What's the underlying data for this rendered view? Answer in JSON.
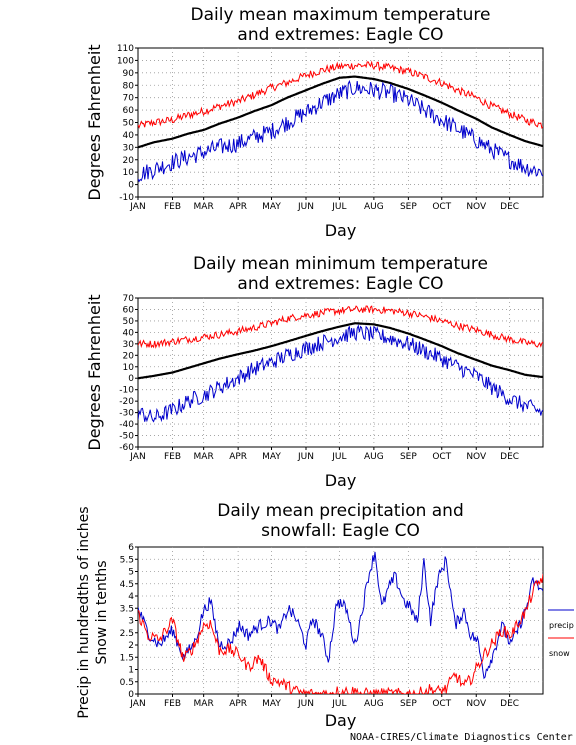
{
  "credit": "NOAA-CIRES/Climate Diagnostics Center",
  "chart_data": [
    {
      "type": "line",
      "title": "Daily mean maximum temperature\nand extremes: Eagle CO",
      "xlabel": "Day",
      "ylabel": "Degrees Fahrenheit",
      "ylim": [
        -10,
        110
      ],
      "yticks": [
        -10,
        0,
        10,
        20,
        30,
        40,
        50,
        60,
        70,
        80,
        90,
        100,
        110
      ],
      "xtick_labels": [
        "JAN",
        "FEB",
        "MAR",
        "APR",
        "MAY",
        "JUN",
        "JUL",
        "AUG",
        "SEP",
        "OCT",
        "NOV",
        "DEC"
      ],
      "grid": true,
      "x_unit": "day of year (1-365)",
      "series": [
        {
          "color": "#ff0000",
          "style": "thin",
          "x": [
            1,
            15,
            32,
            46,
            60,
            74,
            91,
            105,
            121,
            135,
            152,
            166,
            182,
            196,
            213,
            227,
            244,
            258,
            274,
            288,
            305,
            319,
            335,
            349,
            365
          ],
          "values": [
            47,
            50,
            52,
            56,
            59,
            63,
            67,
            72,
            78,
            82,
            88,
            92,
            95,
            96,
            96,
            94,
            91,
            87,
            82,
            76,
            70,
            63,
            57,
            52,
            48
          ]
        },
        {
          "color": "#000000",
          "style": "thick",
          "x": [
            1,
            15,
            32,
            46,
            60,
            74,
            91,
            105,
            121,
            135,
            152,
            166,
            182,
            196,
            213,
            227,
            244,
            258,
            274,
            288,
            305,
            319,
            335,
            349,
            365
          ],
          "values": [
            30,
            34,
            37,
            41,
            44,
            49,
            54,
            59,
            64,
            70,
            76,
            81,
            86,
            87,
            85,
            82,
            77,
            72,
            66,
            60,
            53,
            46,
            40,
            35,
            31
          ]
        },
        {
          "color": "#0000cc",
          "style": "thin",
          "x": [
            1,
            15,
            32,
            46,
            60,
            74,
            91,
            105,
            121,
            135,
            152,
            166,
            182,
            196,
            213,
            227,
            244,
            258,
            274,
            288,
            305,
            319,
            335,
            349,
            365
          ],
          "values": [
            8,
            12,
            18,
            22,
            26,
            30,
            33,
            38,
            43,
            50,
            58,
            66,
            73,
            78,
            76,
            74,
            68,
            60,
            52,
            45,
            36,
            28,
            20,
            14,
            10
          ]
        }
      ]
    },
    {
      "type": "line",
      "title": "Daily mean minimum temperature\nand extremes: Eagle CO",
      "xlabel": "Day",
      "ylabel": "Degrees Fahrenheit",
      "ylim": [
        -60,
        70
      ],
      "yticks": [
        -60,
        -50,
        -40,
        -30,
        -20,
        -10,
        0,
        10,
        20,
        30,
        40,
        50,
        60,
        70
      ],
      "xtick_labels": [
        "JAN",
        "FEB",
        "MAR",
        "APR",
        "MAY",
        "JUN",
        "JUL",
        "AUG",
        "SEP",
        "OCT",
        "NOV",
        "DEC"
      ],
      "grid": true,
      "x_unit": "day of year (1-365)",
      "series": [
        {
          "color": "#ff0000",
          "style": "thin",
          "x": [
            1,
            15,
            32,
            46,
            60,
            74,
            91,
            105,
            121,
            135,
            152,
            166,
            182,
            196,
            213,
            227,
            244,
            258,
            274,
            288,
            305,
            319,
            335,
            349,
            365
          ],
          "values": [
            30,
            30,
            32,
            34,
            36,
            38,
            41,
            44,
            48,
            52,
            55,
            57,
            59,
            60,
            60,
            59,
            57,
            54,
            50,
            46,
            42,
            38,
            34,
            31,
            29
          ]
        },
        {
          "color": "#000000",
          "style": "thick",
          "x": [
            1,
            15,
            32,
            46,
            60,
            74,
            91,
            105,
            121,
            135,
            152,
            166,
            182,
            196,
            213,
            227,
            244,
            258,
            274,
            288,
            305,
            319,
            335,
            349,
            365
          ],
          "values": [
            0,
            2,
            5,
            9,
            13,
            17,
            21,
            24,
            28,
            32,
            37,
            41,
            45,
            48,
            47,
            44,
            39,
            34,
            28,
            22,
            16,
            11,
            7,
            3,
            1
          ]
        },
        {
          "color": "#0000cc",
          "style": "thin",
          "x": [
            1,
            15,
            32,
            46,
            60,
            74,
            91,
            105,
            121,
            135,
            152,
            166,
            182,
            196,
            213,
            227,
            244,
            258,
            274,
            288,
            305,
            319,
            335,
            349,
            365
          ],
          "values": [
            -30,
            -35,
            -28,
            -20,
            -15,
            -8,
            0,
            8,
            14,
            20,
            26,
            31,
            36,
            40,
            38,
            35,
            30,
            24,
            17,
            10,
            2,
            -8,
            -18,
            -24,
            -30
          ]
        }
      ]
    },
    {
      "type": "line",
      "title": "Daily mean precipitation and\nsnowfall: Eagle CO",
      "xlabel": "Day",
      "ylabel_lines": [
        "Precip in hundredths of inches",
        "Snow in tenths"
      ],
      "ylim": [
        0,
        6
      ],
      "yticks": [
        0,
        0.5,
        1,
        1.5,
        2,
        2.5,
        3,
        3.5,
        4,
        4.5,
        5,
        5.5,
        6
      ],
      "ytick_labels": [
        "0",
        "0.5",
        "1",
        "1.5",
        "2",
        "2.5",
        "3",
        "3.5",
        "4",
        "4.5",
        "5",
        "5.5",
        "6"
      ],
      "xtick_labels": [
        "JAN",
        "FEB",
        "MAR",
        "APR",
        "MAY",
        "JUN",
        "JUL",
        "AUG",
        "SEP",
        "OCT",
        "NOV",
        "DEC"
      ],
      "grid": true,
      "x_unit": "day of year (1-365)",
      "legend_placement": "right",
      "series": [
        {
          "name": "precip",
          "color": "#0000cc",
          "x": [
            1,
            10,
            20,
            32,
            42,
            52,
            60,
            66,
            74,
            84,
            92,
            100,
            110,
            120,
            128,
            136,
            144,
            152,
            158,
            166,
            172,
            180,
            188,
            196,
            202,
            208,
            214,
            220,
            226,
            232,
            240,
            246,
            252,
            258,
            264,
            270,
            278,
            286,
            294,
            300,
            306,
            312,
            320,
            328,
            336,
            344,
            350,
            356,
            365
          ],
          "values": [
            3.5,
            2.5,
            2.0,
            2.6,
            1.5,
            2.1,
            3.4,
            3.8,
            2.0,
            2.1,
            2.8,
            2.4,
            2.8,
            3.0,
            2.6,
            3.5,
            3.0,
            2.0,
            3.1,
            2.4,
            1.4,
            3.8,
            3.5,
            2.0,
            3.3,
            4.8,
            5.8,
            3.5,
            4.3,
            4.8,
            3.8,
            3.5,
            2.9,
            5.4,
            3.0,
            4.6,
            5.5,
            2.8,
            3.4,
            2.4,
            2.2,
            0.8,
            1.6,
            2.8,
            2.0,
            2.8,
            3.5,
            4.6,
            4.2
          ]
        },
        {
          "name": "snow",
          "color": "#ff0000",
          "x": [
            1,
            10,
            20,
            32,
            42,
            52,
            60,
            66,
            74,
            84,
            92,
            100,
            110,
            120,
            128,
            136,
            144,
            152,
            158,
            166,
            172,
            180,
            188,
            196,
            202,
            208,
            214,
            220,
            226,
            232,
            240,
            246,
            252,
            258,
            264,
            270,
            278,
            286,
            294,
            300,
            306,
            312,
            320,
            328,
            336,
            344,
            350,
            356,
            365
          ],
          "values": [
            3.3,
            2.4,
            2.2,
            3.0,
            1.4,
            2.0,
            2.8,
            2.9,
            1.8,
            1.8,
            1.6,
            1.1,
            1.5,
            0.6,
            0.5,
            0.3,
            0.1,
            0.0,
            0.0,
            0.0,
            0.0,
            0.1,
            0.1,
            0.1,
            0.0,
            0.0,
            0.0,
            0.0,
            0.0,
            0.0,
            0.0,
            0.0,
            0.0,
            0.1,
            0.2,
            0.1,
            0.2,
            0.8,
            0.3,
            0.6,
            1.1,
            1.6,
            2.1,
            2.6,
            2.4,
            3.0,
            3.4,
            4.2,
            4.8
          ]
        }
      ]
    }
  ]
}
